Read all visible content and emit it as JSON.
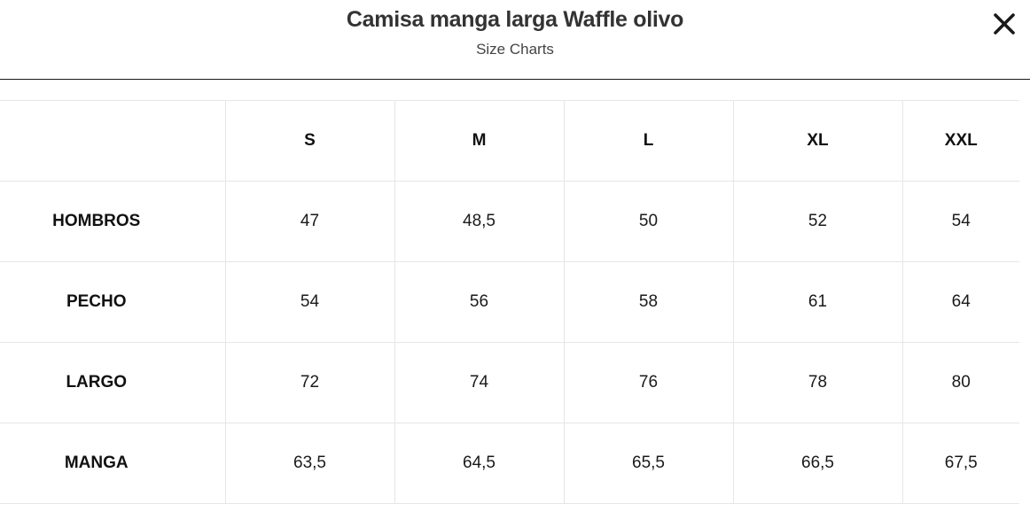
{
  "modal": {
    "title": "Camisa manga larga Waffle olivo",
    "subtitle": "Size Charts"
  },
  "icons": {
    "close": "close-icon"
  },
  "size_table": {
    "headers": [
      "",
      "S",
      "M",
      "L",
      "XL",
      "XXL"
    ],
    "rows": [
      {
        "label": "HOMBROS",
        "values": [
          "47",
          "48,5",
          "50",
          "52",
          "54"
        ]
      },
      {
        "label": "PECHO",
        "values": [
          "54",
          "56",
          "58",
          "61",
          "64"
        ]
      },
      {
        "label": "LARGO",
        "values": [
          "72",
          "74",
          "76",
          "78",
          "80"
        ]
      },
      {
        "label": "MANGA",
        "values": [
          "63,5",
          "64,5",
          "65,5",
          "66,5",
          "67,5"
        ]
      }
    ]
  }
}
